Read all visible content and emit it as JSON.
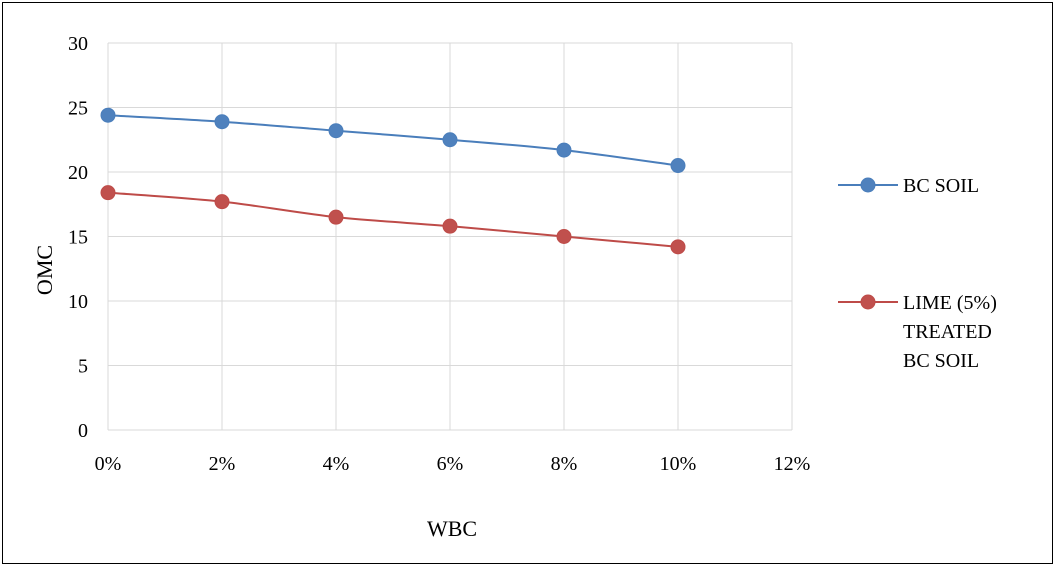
{
  "chart_data": {
    "type": "line",
    "title": "",
    "xlabel": "WBC",
    "ylabel": "OMC",
    "x": [
      0,
      2,
      4,
      6,
      8,
      10
    ],
    "x_tick_labels": [
      "0%",
      "2%",
      "4%",
      "6%",
      "8%",
      "10%",
      "12%"
    ],
    "xlim": [
      0,
      12
    ],
    "y_tick_labels": [
      "0",
      "5",
      "10",
      "15",
      "20",
      "25",
      "30"
    ],
    "ylim": [
      0,
      30
    ],
    "grid": true,
    "legend_position": "right",
    "series": [
      {
        "name": "BC SOIL",
        "legend_lines": [
          "BC SOIL"
        ],
        "color": "#4a7ebb",
        "marker_color": "#4f81bd",
        "values": [
          24.4,
          23.9,
          23.2,
          22.5,
          21.7,
          20.5
        ]
      },
      {
        "name": "LIME (5%) TREATED BC SOIL",
        "legend_lines": [
          "LIME (5%)",
          "TREATED",
          "BC SOIL"
        ],
        "color": "#be4b48",
        "marker_color": "#c0504d",
        "values": [
          18.4,
          17.7,
          16.5,
          15.8,
          15.0,
          14.2
        ]
      }
    ]
  }
}
